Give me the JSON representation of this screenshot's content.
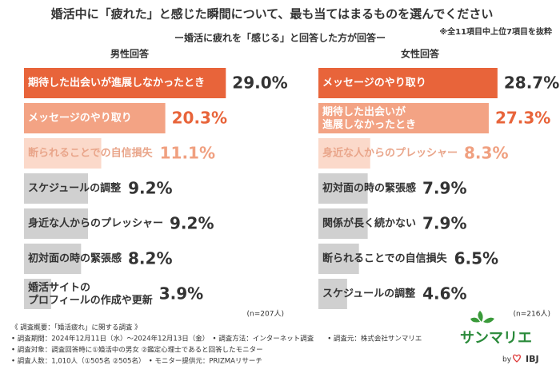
{
  "header": {
    "title": "婚活中に「疲れた」と感じた瞬間について、最も当てはまるものを選んでください",
    "subtitle": "ー婚活に疲れを「感じる」と回答した方が回答ー",
    "note": "※全11項目中上位7項目を抜粋"
  },
  "chart_data": [
    {
      "type": "bar",
      "title": "男性回答",
      "categories": [
        "期待した出会いが進展しなかったとき",
        "メッセージのやり取り",
        "断られることでの自信損失",
        "スケジュールの調整",
        "身近な人からのプレッシャー",
        "初対面の時の緊張感",
        "婚活サイトの\nプロフィールの作成や更新"
      ],
      "values": [
        29.0,
        20.3,
        11.1,
        9.2,
        9.2,
        8.2,
        3.9
      ],
      "value_labels": [
        "29.0%",
        "20.3%",
        "11.1%",
        "9.2%",
        "9.2%",
        "8.2%",
        "3.9%"
      ],
      "colors": [
        "#e8643a",
        "#f3a384",
        "#fbd9ca",
        "#d0d0d0",
        "#d0d0d0",
        "#d0d0d0",
        "#d0d0d0"
      ],
      "note": "(n=207人)"
    },
    {
      "type": "bar",
      "title": "女性回答",
      "categories": [
        "メッセージのやり取り",
        "期待した出会いが\n進展しなかったとき",
        "身近な人からのプレッシャー",
        "初対面の時の緊張感",
        "関係が長く続かない",
        "断られることでの自信損失",
        "スケジュールの調整"
      ],
      "values": [
        28.7,
        27.3,
        8.3,
        7.9,
        7.9,
        6.5,
        4.6
      ],
      "value_labels": [
        "28.7%",
        "27.3%",
        "8.3%",
        "7.9%",
        "7.9%",
        "6.5%",
        "4.6%"
      ],
      "colors": [
        "#e8643a",
        "#f3a384",
        "#fbd9ca",
        "#d0d0d0",
        "#d0d0d0",
        "#d0d0d0",
        "#d0d0d0"
      ],
      "note": "(n=216人)"
    }
  ],
  "footer": [
    "《 調査概要：「婚活疲れ」に関する調査 》",
    "• 調査期間：2024年12月11日（水）〜2024年12月13日（金）　• 調査方法：インターネット調査　　• 調査元：株式会社サンマリエ",
    "• 調査対象：調査回答時に①婚活中の男女 ②鑑定心理士であると回答したモニター",
    "• 調査人数：1,010人（①505名 ②505名）　• モニター提供元：PRIZMAリサーチ"
  ],
  "logo": {
    "name": "サンマリエ",
    "by": "by",
    "brand": "IBJ"
  }
}
